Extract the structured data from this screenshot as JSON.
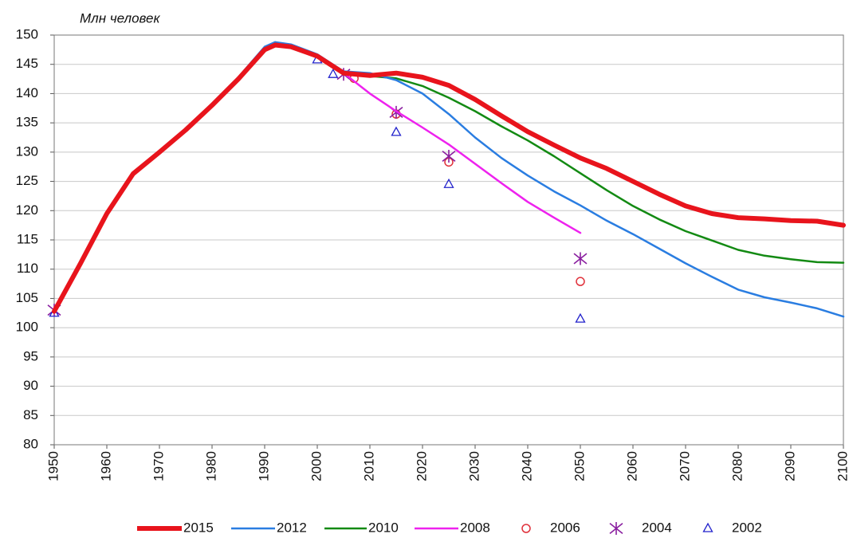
{
  "chart_data": {
    "type": "line",
    "ylabel": "Млн человек",
    "xlim": [
      1950,
      2100
    ],
    "xticks": [
      1950,
      1960,
      1970,
      1980,
      1990,
      2000,
      2010,
      2020,
      2030,
      2040,
      2050,
      2060,
      2070,
      2080,
      2090,
      2100
    ],
    "ylim": [
      80,
      150
    ],
    "yticks": [
      80,
      85,
      90,
      95,
      100,
      105,
      110,
      115,
      120,
      125,
      130,
      135,
      140,
      145,
      150
    ],
    "grid": true,
    "legend": "bottom",
    "series": [
      {
        "name": "2015",
        "color": "#e8141c",
        "width": 6,
        "x": [
          1950,
          1955,
          1960,
          1965,
          1970,
          1975,
          1980,
          1985,
          1990,
          1992,
          1995,
          2000,
          2005,
          2010,
          2015,
          2020,
          2025,
          2030,
          2035,
          2040,
          2045,
          2050,
          2055,
          2060,
          2065,
          2070,
          2075,
          2080,
          2085,
          2090,
          2095,
          2100
        ],
        "values": [
          102.8,
          111,
          119.5,
          126.3,
          130,
          133.8,
          138,
          142.5,
          147.5,
          148.3,
          148,
          146.4,
          143.5,
          143.1,
          143.5,
          142.8,
          141.4,
          139,
          136.2,
          133.5,
          131.2,
          129,
          127.2,
          125,
          122.8,
          120.8,
          119.5,
          118.8,
          118.6,
          118.3,
          118.2,
          117.5
        ]
      },
      {
        "name": "2012",
        "color": "#2a7de1",
        "width": 2.5,
        "x": [
          1950,
          1955,
          1960,
          1965,
          1970,
          1975,
          1980,
          1985,
          1990,
          1992,
          1995,
          2000,
          2005,
          2010,
          2015,
          2020,
          2025,
          2030,
          2035,
          2040,
          2045,
          2050,
          2055,
          2060,
          2065,
          2070,
          2075,
          2080,
          2085,
          2090,
          2095,
          2100
        ],
        "values": [
          102.9,
          111.2,
          119.6,
          126.5,
          130.2,
          134,
          138.3,
          142.8,
          148,
          148.8,
          148.4,
          146.7,
          143.8,
          143.5,
          142.3,
          140,
          136.5,
          132.5,
          129,
          126,
          123.3,
          120.9,
          118.3,
          116,
          113.5,
          111,
          108.7,
          106.5,
          105.2,
          104.3,
          103.3,
          101.9
        ]
      },
      {
        "name": "2010",
        "color": "#138a13",
        "width": 2.5,
        "x": [
          2005,
          2010,
          2015,
          2020,
          2025,
          2030,
          2035,
          2040,
          2045,
          2050,
          2055,
          2060,
          2065,
          2070,
          2075,
          2080,
          2085,
          2090,
          2095,
          2100
        ],
        "values": [
          143.5,
          143,
          142.6,
          141.3,
          139.3,
          137,
          134.4,
          132,
          129.3,
          126.4,
          123.5,
          120.8,
          118.5,
          116.5,
          114.9,
          113.3,
          112.3,
          111.7,
          111.2,
          111.1
        ]
      },
      {
        "name": "2008",
        "color": "#ee22ee",
        "width": 2.5,
        "x": [
          1950,
          1955,
          1960,
          1965,
          1970,
          1975,
          1980,
          1985,
          1990,
          1992,
          1995,
          2000,
          2005,
          2010,
          2015,
          2020,
          2025,
          2030,
          2035,
          2040,
          2045,
          2050
        ],
        "values": [
          102.8,
          111,
          119.4,
          126.2,
          130,
          133.8,
          138,
          142.4,
          147.6,
          148.4,
          148.1,
          146.5,
          143.5,
          140,
          137,
          134.2,
          131.3,
          128,
          124.7,
          121.5,
          118.8,
          116.2
        ]
      },
      {
        "name": "2006",
        "color": "#e0303a",
        "marker": "circle",
        "x": [
          2007,
          2015,
          2025,
          2050
        ],
        "values": [
          142.6,
          136.5,
          128.3,
          107.9
        ]
      },
      {
        "name": "2004",
        "color": "#8a1fa0",
        "marker": "asterisk",
        "x": [
          1950,
          2005,
          2015,
          2025,
          2050
        ],
        "values": [
          103,
          143.3,
          136.8,
          129.3,
          111.8
        ]
      },
      {
        "name": "2002",
        "color": "#2222cc",
        "marker": "triangle",
        "x": [
          1950,
          2000,
          2003,
          2015,
          2025,
          2050
        ],
        "values": [
          102.5,
          145.8,
          143.3,
          133.4,
          124.5,
          101.5
        ]
      }
    ]
  }
}
